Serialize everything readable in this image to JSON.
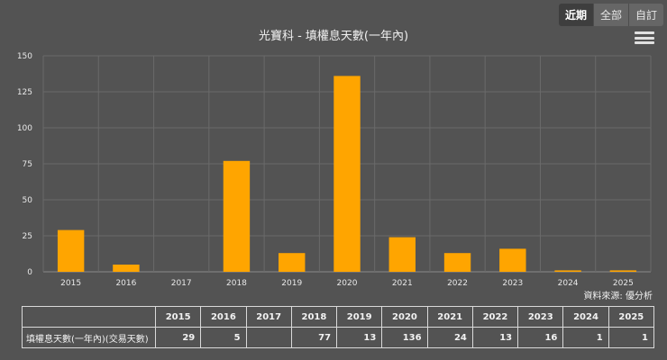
{
  "toolbar": {
    "range_buttons": [
      {
        "label": "近期",
        "active": true
      },
      {
        "label": "全部",
        "active": false
      },
      {
        "label": "自訂",
        "active": false
      }
    ]
  },
  "source_label": "資料來源: 優分析",
  "chart_data": {
    "type": "bar",
    "title": "光寶科 - 填權息天數(一年內)",
    "categories": [
      "2015",
      "2016",
      "2017",
      "2018",
      "2019",
      "2020",
      "2021",
      "2022",
      "2023",
      "2024",
      "2025"
    ],
    "values": [
      29,
      5,
      null,
      77,
      13,
      136,
      24,
      13,
      16,
      1,
      1
    ],
    "ylim": [
      0,
      150
    ],
    "yticks": [
      0,
      25,
      50,
      75,
      100,
      125,
      150
    ],
    "xlabel": "",
    "ylabel": "",
    "grid": true,
    "bar_color": "#ffa500"
  },
  "table": {
    "corner": "",
    "headers": [
      "2015",
      "2016",
      "2017",
      "2018",
      "2019",
      "2020",
      "2021",
      "2022",
      "2023",
      "2024",
      "2025"
    ],
    "row_label": "填權息天數(一年內)(交易天數)",
    "row_values": [
      "29",
      "5",
      "",
      "77",
      "13",
      "136",
      "24",
      "13",
      "16",
      "1",
      "1"
    ]
  },
  "colors": {
    "background": "#535353",
    "bar": "#ffa500",
    "grid": "#6a6a6a"
  }
}
